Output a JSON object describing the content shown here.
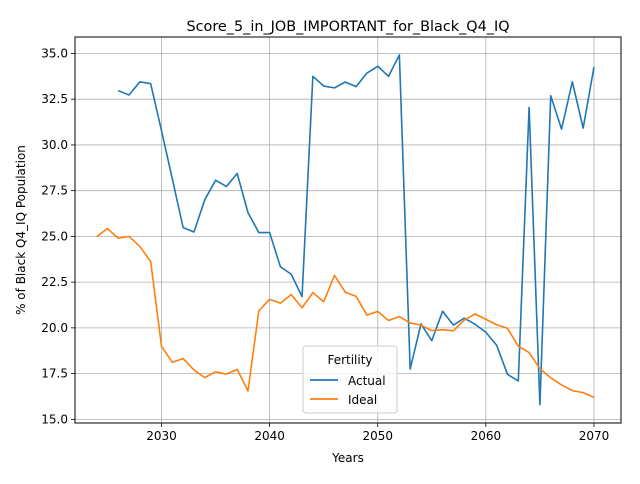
{
  "chart_data": {
    "type": "line",
    "title": "Score_5_in_JOB_IMPORTANT_for_Black_Q4_IQ",
    "xlabel": "Years",
    "ylabel": "% of Black Q4_IQ Population",
    "xlim": [
      2022,
      2072.5
    ],
    "ylim": [
      14.8,
      35.9
    ],
    "x_ticks": [
      2030,
      2040,
      2050,
      2060,
      2070
    ],
    "y_ticks": [
      15.0,
      17.5,
      20.0,
      22.5,
      25.0,
      27.5,
      30.0,
      32.5,
      35.0
    ],
    "grid": true,
    "legend": {
      "title": "Fertility",
      "placement": "lower-center"
    },
    "series": [
      {
        "name": "Actual",
        "color": "#1f77b4",
        "x": [
          2026,
          2027,
          2028,
          2029,
          2030,
          2031,
          2032,
          2033,
          2034,
          2035,
          2036,
          2037,
          2038,
          2039,
          2040,
          2041,
          2042,
          2043,
          2044,
          2045,
          2046,
          2047,
          2048,
          2049,
          2050,
          2051,
          2052,
          2053,
          2054,
          2055,
          2056,
          2057,
          2058,
          2059,
          2060,
          2061,
          2062,
          2063,
          2064,
          2065,
          2066,
          2067,
          2068,
          2069,
          2070
        ],
        "values": [
          32.97,
          32.73,
          33.45,
          33.35,
          30.78,
          28.15,
          25.48,
          25.24,
          27.0,
          28.07,
          27.73,
          28.44,
          26.3,
          25.21,
          25.21,
          23.34,
          22.93,
          21.71,
          33.75,
          33.22,
          33.12,
          33.44,
          33.19,
          33.93,
          34.3,
          33.75,
          34.92,
          17.75,
          20.22,
          19.3,
          20.91,
          20.15,
          20.53,
          20.2,
          19.76,
          19.05,
          17.46,
          17.1,
          32.05,
          15.8,
          32.69,
          30.87,
          33.45,
          30.92,
          34.26
        ]
      },
      {
        "name": "Ideal",
        "color": "#ff7f0e",
        "x": [
          2024,
          2025,
          2026,
          2027,
          2028,
          2029,
          2030,
          2031,
          2032,
          2033,
          2034,
          2035,
          2036,
          2037,
          2038,
          2039,
          2040,
          2041,
          2042,
          2043,
          2044,
          2045,
          2046,
          2047,
          2048,
          2049,
          2050,
          2051,
          2052,
          2053,
          2054,
          2055,
          2056,
          2057,
          2058,
          2059,
          2060,
          2061,
          2062,
          2063,
          2064,
          2065,
          2066,
          2067,
          2068,
          2069,
          2070
        ],
        "values": [
          24.98,
          25.43,
          24.9,
          25.0,
          24.45,
          23.62,
          19.0,
          18.12,
          18.32,
          17.7,
          17.28,
          17.6,
          17.47,
          17.73,
          16.55,
          20.93,
          21.56,
          21.35,
          21.82,
          21.1,
          21.93,
          21.43,
          22.87,
          21.95,
          21.72,
          20.7,
          20.9,
          20.4,
          20.62,
          20.27,
          20.15,
          19.85,
          19.9,
          19.84,
          20.42,
          20.76,
          20.47,
          20.17,
          19.98,
          19.0,
          18.65,
          17.77,
          17.27,
          16.88,
          16.57,
          16.46,
          16.2
        ]
      }
    ]
  }
}
